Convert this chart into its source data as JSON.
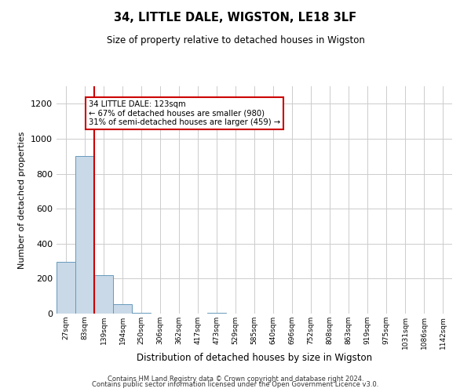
{
  "title": "34, LITTLE DALE, WIGSTON, LE18 3LF",
  "subtitle": "Size of property relative to detached houses in Wigston",
  "xlabel": "Distribution of detached houses by size in Wigston",
  "ylabel": "Number of detached properties",
  "bin_labels": [
    "27sqm",
    "83sqm",
    "139sqm",
    "194sqm",
    "250sqm",
    "306sqm",
    "362sqm",
    "417sqm",
    "473sqm",
    "529sqm",
    "585sqm",
    "640sqm",
    "696sqm",
    "752sqm",
    "808sqm",
    "863sqm",
    "919sqm",
    "975sqm",
    "1031sqm",
    "1086sqm",
    "1142sqm"
  ],
  "bar_heights": [
    295,
    900,
    220,
    55,
    5,
    0,
    0,
    0,
    5,
    0,
    0,
    0,
    0,
    0,
    0,
    0,
    0,
    0,
    0,
    0,
    0
  ],
  "bar_color": "#c9d9e8",
  "bar_edge_color": "#6699bb",
  "red_line_bin": 2,
  "annotation_line1": "34 LITTLE DALE: 123sqm",
  "annotation_line2": "← 67% of detached houses are smaller (980)",
  "annotation_line3": "31% of semi-detached houses are larger (459) →",
  "annotation_box_color": "#ffffff",
  "annotation_box_edge_color": "#cc0000",
  "ylim": [
    0,
    1300
  ],
  "yticks": [
    0,
    200,
    400,
    600,
    800,
    1000,
    1200
  ],
  "footer_line1": "Contains HM Land Registry data © Crown copyright and database right 2024.",
  "footer_line2": "Contains public sector information licensed under the Open Government Licence v3.0.",
  "background_color": "#ffffff",
  "grid_color": "#cccccc"
}
